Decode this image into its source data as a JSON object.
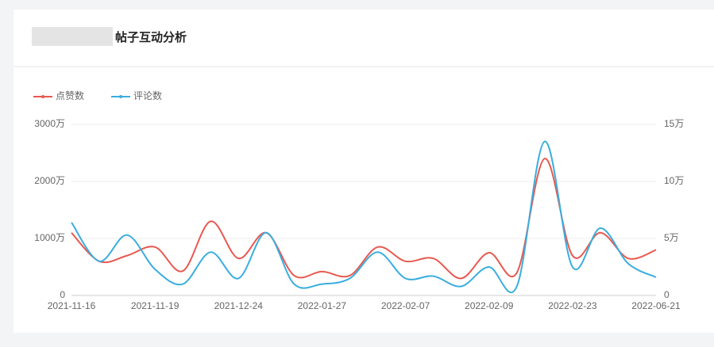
{
  "chart_data": {
    "type": "line",
    "title": "帖子互动分析",
    "categories": [
      "2021-11-16",
      null,
      null,
      "2021-11-19",
      null,
      null,
      "2021-12-24",
      null,
      null,
      "2022-01-27",
      null,
      null,
      "2022-02-07",
      null,
      null,
      "2022-02-09",
      null,
      null,
      "2022-02-23",
      null,
      null,
      "2022-06-21"
    ],
    "series": [
      {
        "name": "点赞数",
        "color": "#e8584f",
        "values": [
          1100,
          600,
          700,
          850,
          430,
          1300,
          650,
          1100,
          350,
          420,
          350,
          850,
          600,
          650,
          300,
          750,
          400,
          2400,
          700,
          1100,
          650,
          800
        ]
      },
      {
        "name": "评论数",
        "color": "#3aaede",
        "axis": "y2",
        "values": [
          6.4,
          3.0,
          5.3,
          2.3,
          1.0,
          3.8,
          1.5,
          5.5,
          1.0,
          1.0,
          1.5,
          3.8,
          1.5,
          1.7,
          0.8,
          2.5,
          0.8,
          13.5,
          2.5,
          5.9,
          2.8,
          1.6
        ]
      }
    ],
    "ylim": [
      0,
      3000
    ],
    "yticks": [
      0,
      {
        "value": 1000,
        "label": "1000万"
      },
      {
        "value": 2000,
        "label": "2000万"
      },
      {
        "value": 3000,
        "label": "3000万"
      }
    ],
    "y2lim": [
      0,
      15
    ],
    "y2ticks": [
      0,
      {
        "value": 5,
        "label": "5万"
      },
      {
        "value": 10,
        "label": "10万"
      },
      {
        "value": 15,
        "label": "15万"
      }
    ],
    "grid": true,
    "legend": "top-left"
  }
}
